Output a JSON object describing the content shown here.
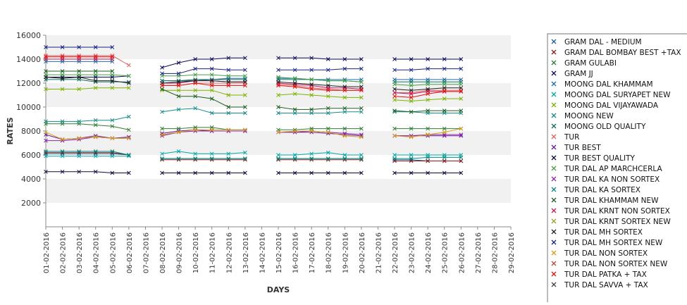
{
  "chart_data": {
    "type": "line",
    "xlabel": "DAYS",
    "ylabel": "RATES",
    "ylim": [
      0,
      16000
    ],
    "yticks": [
      2000,
      4000,
      6000,
      8000,
      10000,
      12000,
      14000,
      16000
    ],
    "grid": "alternating horizontal bands",
    "legend_position": "right",
    "categories": [
      "01-02-2016",
      "02-02-2016",
      "03-02-2016",
      "04-02-2016",
      "05-02-2016",
      "06-02-2016",
      "07-02-2016",
      "08-02-2016",
      "09-02-2016",
      "10-02-2016",
      "11-02-2016",
      "12-02-2016",
      "13-02-2016",
      "14-02-2016",
      "15-02-2016",
      "16-02-2016",
      "17-02-2016",
      "18-02-2016",
      "19-02-2016",
      "20-02-2016",
      "21-02-2016",
      "22-02-2016",
      "23-02-2016",
      "24-02-2016",
      "25-02-2016",
      "26-02-2016",
      "27-02-2016",
      "28-02-2016",
      "29-02-2016"
    ],
    "series": [
      {
        "name": "GRAM DAL - MEDIUM",
        "color": "#1f5f8f",
        "values": [
          6100,
          6100,
          6100,
          6100,
          6100,
          6000,
          null,
          5700,
          5700,
          5700,
          5700,
          5700,
          5700,
          null,
          5700,
          5700,
          5700,
          5700,
          5700,
          5700,
          null,
          5600,
          5600,
          5500,
          5500,
          5500,
          null,
          null,
          null
        ]
      },
      {
        "name": "GRAM DAL BOMBAY BEST +TAX",
        "color": "#8b1a1a",
        "values": [
          6200,
          6200,
          6200,
          6200,
          6200,
          6000,
          null,
          5600,
          5600,
          5600,
          5600,
          5600,
          5600,
          null,
          5600,
          5600,
          5600,
          5600,
          5600,
          5600,
          null,
          5500,
          5500,
          5500,
          5500,
          5500,
          null,
          null,
          null
        ]
      },
      {
        "name": "GRAM GULABI",
        "color": "#2e7d32",
        "values": [
          8600,
          8600,
          8600,
          8500,
          8400,
          8100,
          null,
          8200,
          8200,
          8300,
          8300,
          8100,
          8100,
          null,
          8100,
          8100,
          8200,
          8200,
          8200,
          8200,
          null,
          8200,
          8200,
          8200,
          8200,
          8200,
          null,
          null,
          null
        ]
      },
      {
        "name": "GRAM JJ",
        "color": "#0a0a5a",
        "values": [
          12500,
          12500,
          12500,
          12500,
          12500,
          12600,
          null,
          13300,
          13700,
          14000,
          14000,
          14100,
          14100,
          null,
          14100,
          14100,
          14100,
          14000,
          14000,
          14000,
          null,
          14000,
          14000,
          14000,
          14000,
          14000,
          null,
          null,
          null
        ]
      },
      {
        "name": "MOONG DAL KHAMMAM",
        "color": "#1f6fa8",
        "values": [
          13800,
          13800,
          13800,
          13800,
          13800,
          null,
          null,
          12200,
          12200,
          12200,
          12300,
          12400,
          12400,
          null,
          12400,
          12400,
          12300,
          12300,
          12300,
          12300,
          null,
          12300,
          12300,
          12300,
          12300,
          12300,
          null,
          null,
          null
        ]
      },
      {
        "name": "MOONG DAL SURYAPET NEW",
        "color": "#00a8a8",
        "values": [
          5900,
          5900,
          5900,
          5900,
          5900,
          5900,
          null,
          6100,
          6300,
          6100,
          6100,
          6100,
          6200,
          null,
          6000,
          6000,
          6100,
          6200,
          6000,
          6000,
          null,
          6000,
          6000,
          6000,
          6000,
          6000,
          null,
          null,
          null
        ]
      },
      {
        "name": "MOONG DAL VIJAYAWADA",
        "color": "#7cb300",
        "values": [
          11500,
          11500,
          11500,
          11600,
          11600,
          11600,
          null,
          11400,
          11400,
          11400,
          11400,
          11000,
          11000,
          null,
          11000,
          11100,
          11000,
          10900,
          10800,
          10800,
          null,
          10600,
          10500,
          10600,
          10700,
          10700,
          null,
          null,
          null
        ]
      },
      {
        "name": "MOONG NEW",
        "color": "#178a8a",
        "values": [
          8800,
          8800,
          8800,
          8900,
          8900,
          9200,
          null,
          9600,
          9800,
          9900,
          9500,
          9500,
          9500,
          null,
          9500,
          9500,
          9500,
          9500,
          9600,
          9600,
          null,
          9600,
          9600,
          9500,
          9500,
          9500,
          null,
          null,
          null
        ]
      },
      {
        "name": "MOONG OLD QUALITY",
        "color": "#0f6e5e",
        "values": [
          12300,
          12300,
          12300,
          12100,
          12100,
          12100,
          null,
          12200,
          12200,
          12300,
          12300,
          12300,
          12300,
          null,
          12300,
          12300,
          12300,
          12200,
          12200,
          12100,
          null,
          12100,
          12100,
          12100,
          12100,
          12100,
          null,
          null,
          null
        ]
      },
      {
        "name": "TUR",
        "color": "#e06060",
        "values": [
          14300,
          14300,
          14300,
          14300,
          14300,
          13500,
          null,
          11800,
          11800,
          12000,
          12000,
          12000,
          12000,
          null,
          11900,
          11800,
          11600,
          11500,
          11400,
          11400,
          null,
          11200,
          11200,
          11400,
          11400,
          11400,
          null,
          null,
          null
        ]
      },
      {
        "name": "TUR BEST",
        "color": "#6a1b9a",
        "values": [
          7700,
          7300,
          7400,
          7600,
          7400,
          7500,
          null,
          7800,
          8000,
          8100,
          8000,
          8000,
          8000,
          null,
          7900,
          7900,
          7900,
          7800,
          7700,
          7600,
          null,
          7600,
          7600,
          7600,
          7600,
          7600,
          null,
          null,
          null
        ]
      },
      {
        "name": "TUR BEST QUALITY",
        "color": "#0b0b3b",
        "values": [
          4600,
          4600,
          4600,
          4600,
          4500,
          4500,
          null,
          4500,
          4500,
          4500,
          4500,
          4500,
          4500,
          null,
          4500,
          4500,
          4500,
          4500,
          4500,
          4500,
          null,
          4500,
          4500,
          4500,
          4500,
          4500,
          null,
          null,
          null
        ]
      },
      {
        "name": "TUR DAL AP MARCHCERLA",
        "color": "#43a047",
        "values": [
          12700,
          12700,
          12700,
          12700,
          12700,
          12600,
          null,
          12600,
          12600,
          12700,
          12700,
          12600,
          12600,
          null,
          12500,
          12400,
          12300,
          12200,
          12200,
          12100,
          null,
          11900,
          11800,
          11900,
          11900,
          11900,
          null,
          null,
          null
        ]
      },
      {
        "name": "TUR DAL KA NON SORTEX",
        "color": "#8e24aa",
        "values": [
          7200,
          7200,
          7300,
          7500,
          7400,
          7400,
          null,
          7600,
          7900,
          8000,
          8000,
          8000,
          8000,
          null,
          7900,
          7900,
          8000,
          7900,
          7800,
          7700,
          null,
          7600,
          7600,
          7700,
          7700,
          7700,
          null,
          null,
          null
        ]
      },
      {
        "name": "TUR DAL KA SORTEX",
        "color": "#00897b",
        "values": [
          6300,
          6300,
          6300,
          6300,
          6300,
          6000,
          null,
          5700,
          5700,
          5700,
          5700,
          5700,
          5700,
          null,
          5700,
          5700,
          5700,
          5700,
          5700,
          5700,
          null,
          5700,
          5700,
          5800,
          5800,
          5800,
          null,
          null,
          null
        ]
      },
      {
        "name": "TUR DAL KHAMMAM NEW",
        "color": "#1b5e20",
        "values": [
          13000,
          13000,
          13000,
          13000,
          13000,
          null,
          null,
          11500,
          10900,
          10900,
          10700,
          10000,
          10000,
          null,
          10000,
          9800,
          9800,
          9900,
          9900,
          9900,
          null,
          9700,
          9600,
          9700,
          9700,
          9700,
          null,
          null,
          null
        ]
      },
      {
        "name": "TUR DAL KRNT NON SORTEX",
        "color": "#c2185b",
        "values": [
          14000,
          14000,
          14000,
          14000,
          14000,
          null,
          null,
          12000,
          12000,
          12200,
          12200,
          12100,
          12100,
          null,
          12000,
          11900,
          11800,
          11600,
          11600,
          11500,
          null,
          11200,
          11100,
          11300,
          11300,
          11300,
          null,
          null,
          null
        ]
      },
      {
        "name": "TUR DAL KRNT SORTEX NEW",
        "color": "#9e9d24",
        "values": [
          null,
          null,
          null,
          null,
          null,
          null,
          null,
          null,
          null,
          null,
          null,
          null,
          null,
          null,
          null,
          null,
          null,
          null,
          null,
          null,
          null,
          null,
          null,
          null,
          null,
          null,
          null,
          null,
          null
        ]
      },
      {
        "name": "TUR DAL MH SORTEX",
        "color": "#222222",
        "values": [
          12500,
          12400,
          12500,
          12200,
          12200,
          12000,
          null,
          12000,
          12100,
          12200,
          12200,
          12100,
          12100,
          null,
          12100,
          12000,
          11900,
          11800,
          11700,
          11700,
          null,
          11500,
          11400,
          11500,
          11600,
          11600,
          null,
          null,
          null
        ]
      },
      {
        "name": "TUR DAL MH SORTEX NEW",
        "color": "#1a237e",
        "values": [
          15000,
          15000,
          15000,
          15000,
          15000,
          null,
          null,
          12800,
          12800,
          13200,
          13200,
          13100,
          13100,
          null,
          13100,
          13100,
          13100,
          13100,
          13200,
          13200,
          null,
          13100,
          13100,
          13200,
          13200,
          13200,
          null,
          null,
          null
        ]
      },
      {
        "name": "TUR DAL NON SORTEX",
        "color": "#d4a017",
        "values": [
          7900,
          7300,
          7400,
          7500,
          7400,
          7400,
          null,
          7700,
          7900,
          8100,
          8100,
          8100,
          8100,
          null,
          7900,
          8000,
          8000,
          7900,
          7600,
          7500,
          null,
          7600,
          7500,
          7700,
          7900,
          8200,
          null,
          null,
          null
        ]
      },
      {
        "name": "TUR DAL NON SORTEX NEW",
        "color": "#b24b3a",
        "values": [
          null,
          null,
          null,
          null,
          null,
          null,
          null,
          null,
          null,
          null,
          null,
          null,
          null,
          null,
          null,
          null,
          null,
          null,
          null,
          null,
          null,
          null,
          null,
          null,
          null,
          null,
          null,
          null,
          null
        ]
      },
      {
        "name": "TUR DAL PATKA + TAX",
        "color": "#e01010",
        "values": [
          14200,
          14200,
          14200,
          14200,
          14200,
          null,
          null,
          11800,
          11800,
          12000,
          11800,
          11800,
          11800,
          null,
          11800,
          11700,
          11500,
          11400,
          11400,
          11400,
          null,
          10900,
          10800,
          11100,
          11300,
          11300,
          null,
          null,
          null
        ]
      },
      {
        "name": "TUR DAL SAVVA + TAX",
        "color": "#444444",
        "values": [
          null,
          null,
          null,
          null,
          null,
          null,
          null,
          null,
          null,
          null,
          null,
          null,
          null,
          null,
          null,
          null,
          null,
          null,
          null,
          null,
          null,
          null,
          null,
          null,
          null,
          null,
          null,
          null,
          null
        ]
      }
    ]
  }
}
